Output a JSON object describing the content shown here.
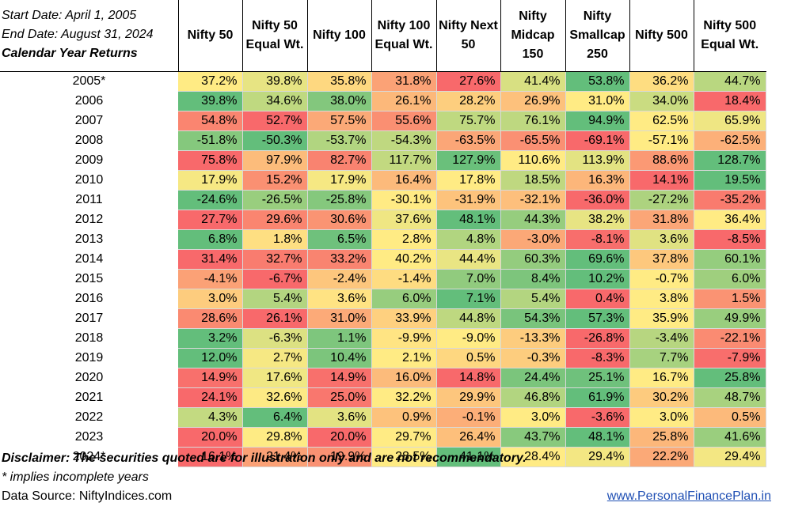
{
  "info": {
    "start_date": "Start Date:  April 1, 2005",
    "end_date": "End Date: August 31, 2024",
    "subtitle": "Calendar Year Returns"
  },
  "columns": [
    "Nifty 50",
    "Nifty 50 Equal Wt.",
    "Nifty 100",
    "Nifty 100 Equal Wt.",
    "Nifty Next 50",
    "Nifty Midcap 150",
    "Nifty Smallcap 250",
    "Nifty 500",
    "Nifty 500 Equal Wt."
  ],
  "rows": [
    {
      "year": "2005*",
      "values": [
        "37.2%",
        "39.8%",
        "35.8%",
        "31.8%",
        "27.6%",
        "41.4%",
        "53.8%",
        "36.2%",
        "44.7%"
      ]
    },
    {
      "year": "2006",
      "values": [
        "39.8%",
        "34.6%",
        "38.0%",
        "26.1%",
        "28.2%",
        "26.9%",
        "31.0%",
        "34.0%",
        "18.4%"
      ]
    },
    {
      "year": "2007",
      "values": [
        "54.8%",
        "52.7%",
        "57.5%",
        "55.6%",
        "75.7%",
        "76.1%",
        "94.9%",
        "62.5%",
        "65.9%"
      ]
    },
    {
      "year": "2008",
      "values": [
        "-51.8%",
        "-50.3%",
        "-53.7%",
        "-54.3%",
        "-63.5%",
        "-65.5%",
        "-69.1%",
        "-57.1%",
        "-62.5%"
      ]
    },
    {
      "year": "2009",
      "values": [
        "75.8%",
        "97.9%",
        "82.7%",
        "117.7%",
        "127.9%",
        "110.6%",
        "113.9%",
        "88.6%",
        "128.7%"
      ]
    },
    {
      "year": "2010",
      "values": [
        "17.9%",
        "15.2%",
        "17.9%",
        "16.4%",
        "17.8%",
        "18.5%",
        "16.3%",
        "14.1%",
        "19.5%"
      ]
    },
    {
      "year": "2011",
      "values": [
        "-24.6%",
        "-26.5%",
        "-25.8%",
        "-30.1%",
        "-31.9%",
        "-32.1%",
        "-36.0%",
        "-27.2%",
        "-35.2%"
      ]
    },
    {
      "year": "2012",
      "values": [
        "27.7%",
        "29.6%",
        "30.6%",
        "37.6%",
        "48.1%",
        "44.3%",
        "38.2%",
        "31.8%",
        "36.4%"
      ]
    },
    {
      "year": "2013",
      "values": [
        "6.8%",
        "1.8%",
        "6.5%",
        "2.8%",
        "4.8%",
        "-3.0%",
        "-8.1%",
        "3.6%",
        "-8.5%"
      ]
    },
    {
      "year": "2014",
      "values": [
        "31.4%",
        "32.7%",
        "33.2%",
        "40.2%",
        "44.4%",
        "60.3%",
        "69.6%",
        "37.8%",
        "60.1%"
      ]
    },
    {
      "year": "2015",
      "values": [
        "-4.1%",
        "-6.7%",
        "-2.4%",
        "-1.4%",
        "7.0%",
        "8.4%",
        "10.2%",
        "-0.7%",
        "6.0%"
      ]
    },
    {
      "year": "2016",
      "values": [
        "3.0%",
        "5.4%",
        "3.6%",
        "6.0%",
        "7.1%",
        "5.4%",
        "0.4%",
        "3.8%",
        "1.5%"
      ]
    },
    {
      "year": "2017",
      "values": [
        "28.6%",
        "26.1%",
        "31.0%",
        "33.9%",
        "44.8%",
        "54.3%",
        "57.3%",
        "35.9%",
        "49.9%"
      ]
    },
    {
      "year": "2018",
      "values": [
        "3.2%",
        "-6.3%",
        "1.1%",
        "-9.9%",
        "-9.0%",
        "-13.3%",
        "-26.8%",
        "-3.4%",
        "-22.1%"
      ]
    },
    {
      "year": "2019",
      "values": [
        "12.0%",
        "2.7%",
        "10.4%",
        "2.1%",
        "0.5%",
        "-0.3%",
        "-8.3%",
        "7.7%",
        "-7.9%"
      ]
    },
    {
      "year": "2020",
      "values": [
        "14.9%",
        "17.6%",
        "14.9%",
        "16.0%",
        "14.8%",
        "24.4%",
        "25.1%",
        "16.7%",
        "25.8%"
      ]
    },
    {
      "year": "2021",
      "values": [
        "24.1%",
        "32.6%",
        "25.0%",
        "32.2%",
        "29.9%",
        "46.8%",
        "61.9%",
        "30.2%",
        "48.7%"
      ]
    },
    {
      "year": "2022",
      "values": [
        "4.3%",
        "6.4%",
        "3.6%",
        "0.9%",
        "-0.1%",
        "3.0%",
        "-3.6%",
        "3.0%",
        "0.5%"
      ]
    },
    {
      "year": "2023",
      "values": [
        "20.0%",
        "29.8%",
        "20.0%",
        "29.7%",
        "26.4%",
        "43.7%",
        "48.1%",
        "25.8%",
        "41.6%"
      ]
    },
    {
      "year": "2024*",
      "values": [
        "16.1%",
        "21.4%",
        "19.9%",
        "28.5%",
        "41.1%",
        "28.4%",
        "29.4%",
        "22.2%",
        "29.4%"
      ]
    }
  ],
  "footer": {
    "disclaimer": "Disclaimer: The securities quoted are for illustration only and are not recommendatory.",
    "note": "* implies incomplete years",
    "source": "Data Source: NiftyIndices.com",
    "website": "www.PersonalFinancePlan.in"
  },
  "colors": {
    "low": "#f8696b",
    "mid": "#ffeb84",
    "high": "#63be7b"
  }
}
